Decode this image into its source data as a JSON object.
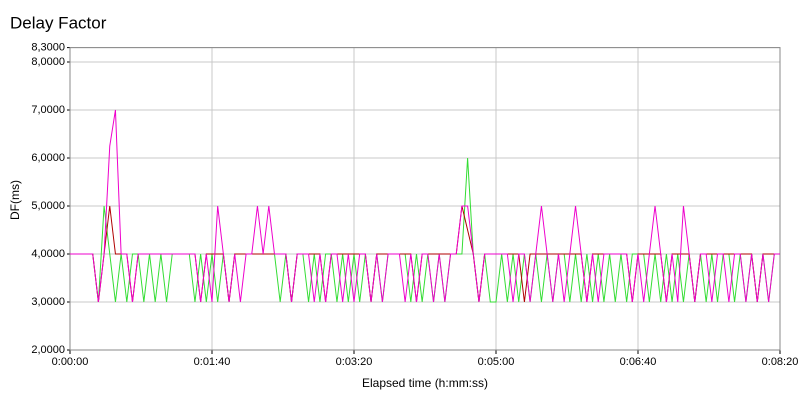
{
  "chart_data": {
    "type": "line",
    "title": "Delay Factor",
    "x_label": "Elapsed time (h:mm:ss)",
    "y_label": "DF(ms)",
    "xlim": [
      0,
      500
    ],
    "ylim": [
      2,
      8.3
    ],
    "grid": true,
    "xticks": [
      {
        "value": 0,
        "label": "0:00:00"
      },
      {
        "value": 100,
        "label": "0:01:40"
      },
      {
        "value": 200,
        "label": "0:03:20"
      },
      {
        "value": 300,
        "label": "0:05:00"
      },
      {
        "value": 400,
        "label": "0:06:40"
      },
      {
        "value": 500,
        "label": "0:08:20"
      }
    ],
    "yticks": [
      {
        "value": 2,
        "label": "2,0000"
      },
      {
        "value": 3,
        "label": "3,0000"
      },
      {
        "value": 4,
        "label": "4,0000"
      },
      {
        "value": 5,
        "label": "5,0000"
      },
      {
        "value": 6,
        "label": "6,0000"
      },
      {
        "value": 7,
        "label": "7,0000"
      },
      {
        "value": 8,
        "label": "8,0000"
      },
      {
        "value": 8.3,
        "label": "8,3000"
      }
    ],
    "x": [
      0,
      4,
      8,
      12,
      16,
      20,
      24,
      28,
      32,
      36,
      40,
      44,
      48,
      52,
      56,
      60,
      64,
      68,
      72,
      76,
      80,
      84,
      88,
      92,
      96,
      100,
      104,
      108,
      112,
      116,
      120,
      124,
      128,
      132,
      136,
      140,
      144,
      148,
      152,
      156,
      160,
      164,
      168,
      172,
      176,
      180,
      184,
      188,
      192,
      196,
      200,
      204,
      208,
      212,
      216,
      220,
      224,
      228,
      232,
      236,
      240,
      244,
      248,
      252,
      256,
      260,
      264,
      268,
      272,
      276,
      280,
      284,
      288,
      292,
      296,
      300,
      304,
      308,
      312,
      316,
      320,
      324,
      328,
      332,
      336,
      340,
      344,
      348,
      352,
      356,
      360,
      364,
      368,
      372,
      376,
      380,
      384,
      388,
      392,
      396,
      400,
      404,
      408,
      412,
      416,
      420,
      424,
      428,
      432,
      436,
      440,
      444,
      448,
      452,
      456,
      460,
      464,
      468,
      472,
      476,
      480,
      484,
      488,
      492,
      496,
      500
    ],
    "series": [
      {
        "color": "#33dd33",
        "values": [
          4,
          4,
          4,
          4,
          4,
          3,
          5,
          4,
          3,
          4,
          3,
          4,
          4,
          3,
          4,
          3,
          4,
          3,
          4,
          4,
          4,
          4,
          3,
          4,
          3,
          4,
          3,
          4,
          3,
          4,
          4,
          4,
          4,
          4,
          4,
          4,
          4,
          3,
          4,
          3,
          4,
          4,
          3,
          4,
          3,
          4,
          4,
          3,
          4,
          3,
          4,
          3,
          4,
          3,
          4,
          3,
          4,
          4,
          4,
          4,
          3,
          4,
          3,
          4,
          3,
          4,
          3,
          4,
          4,
          4,
          6,
          4,
          3,
          4,
          3,
          3,
          4,
          3,
          4,
          3,
          4,
          3,
          4,
          3,
          4,
          3,
          4,
          4,
          3,
          4,
          3,
          4,
          3,
          4,
          3,
          4,
          3,
          4,
          3,
          4,
          4,
          4,
          3,
          4,
          3,
          4,
          3,
          4,
          3,
          4,
          3,
          4,
          3,
          4,
          3,
          4,
          4,
          3,
          4,
          3,
          4,
          3,
          4,
          3,
          4,
          4
        ]
      },
      {
        "color": "#b00000",
        "values": [
          4,
          4,
          4,
          4,
          4,
          3,
          4,
          5,
          4,
          4,
          4,
          3,
          4,
          4,
          4,
          4,
          4,
          4,
          4,
          4,
          4,
          4,
          4,
          3,
          4,
          4,
          4,
          4,
          3,
          4,
          4,
          4,
          4,
          4,
          4,
          4,
          4,
          4,
          4,
          3,
          4,
          4,
          4,
          4,
          4,
          3,
          4,
          4,
          4,
          4,
          4,
          4,
          4,
          3,
          4,
          4,
          4,
          4,
          4,
          4,
          4,
          3,
          4,
          4,
          4,
          4,
          4,
          4,
          4,
          5,
          4.5,
          4,
          3,
          4,
          4,
          4,
          4,
          4,
          4,
          4,
          3,
          4,
          4,
          4,
          4,
          4,
          4,
          4,
          4,
          4,
          4,
          3,
          4,
          4,
          4,
          4,
          4,
          4,
          4,
          3,
          4,
          4,
          4,
          4,
          4,
          3,
          4,
          4,
          4,
          4,
          3,
          4,
          4,
          4,
          4,
          4,
          4,
          4,
          4,
          4,
          4,
          3,
          4,
          4,
          4,
          4
        ]
      },
      {
        "color": "#ee00cc",
        "values": [
          4,
          4,
          4,
          4,
          4,
          3,
          4,
          6.25,
          7,
          4,
          4,
          3,
          4,
          4,
          4,
          4,
          4,
          4,
          4,
          4,
          4,
          4,
          4,
          3,
          4,
          3,
          5,
          4,
          3,
          4,
          3,
          4,
          4,
          5,
          4,
          5,
          4,
          4,
          4,
          3,
          4,
          4,
          4,
          3,
          4,
          3,
          4,
          4,
          3,
          4,
          3,
          4,
          4,
          3,
          4,
          3,
          4,
          4,
          4,
          3,
          4,
          3,
          4,
          4,
          3,
          4,
          3,
          4,
          4,
          5,
          5,
          4,
          3,
          4,
          4,
          4,
          4,
          4,
          3,
          4,
          4,
          3,
          4,
          5,
          4,
          3,
          4,
          3,
          4,
          5,
          4,
          3,
          4,
          3,
          4,
          4,
          4,
          4,
          4,
          3,
          4,
          3,
          4,
          5,
          4,
          3,
          4,
          3,
          5,
          4,
          3,
          4,
          4,
          3,
          4,
          4,
          3,
          4,
          4,
          3,
          4,
          3,
          4,
          3,
          4,
          4
        ]
      }
    ]
  }
}
